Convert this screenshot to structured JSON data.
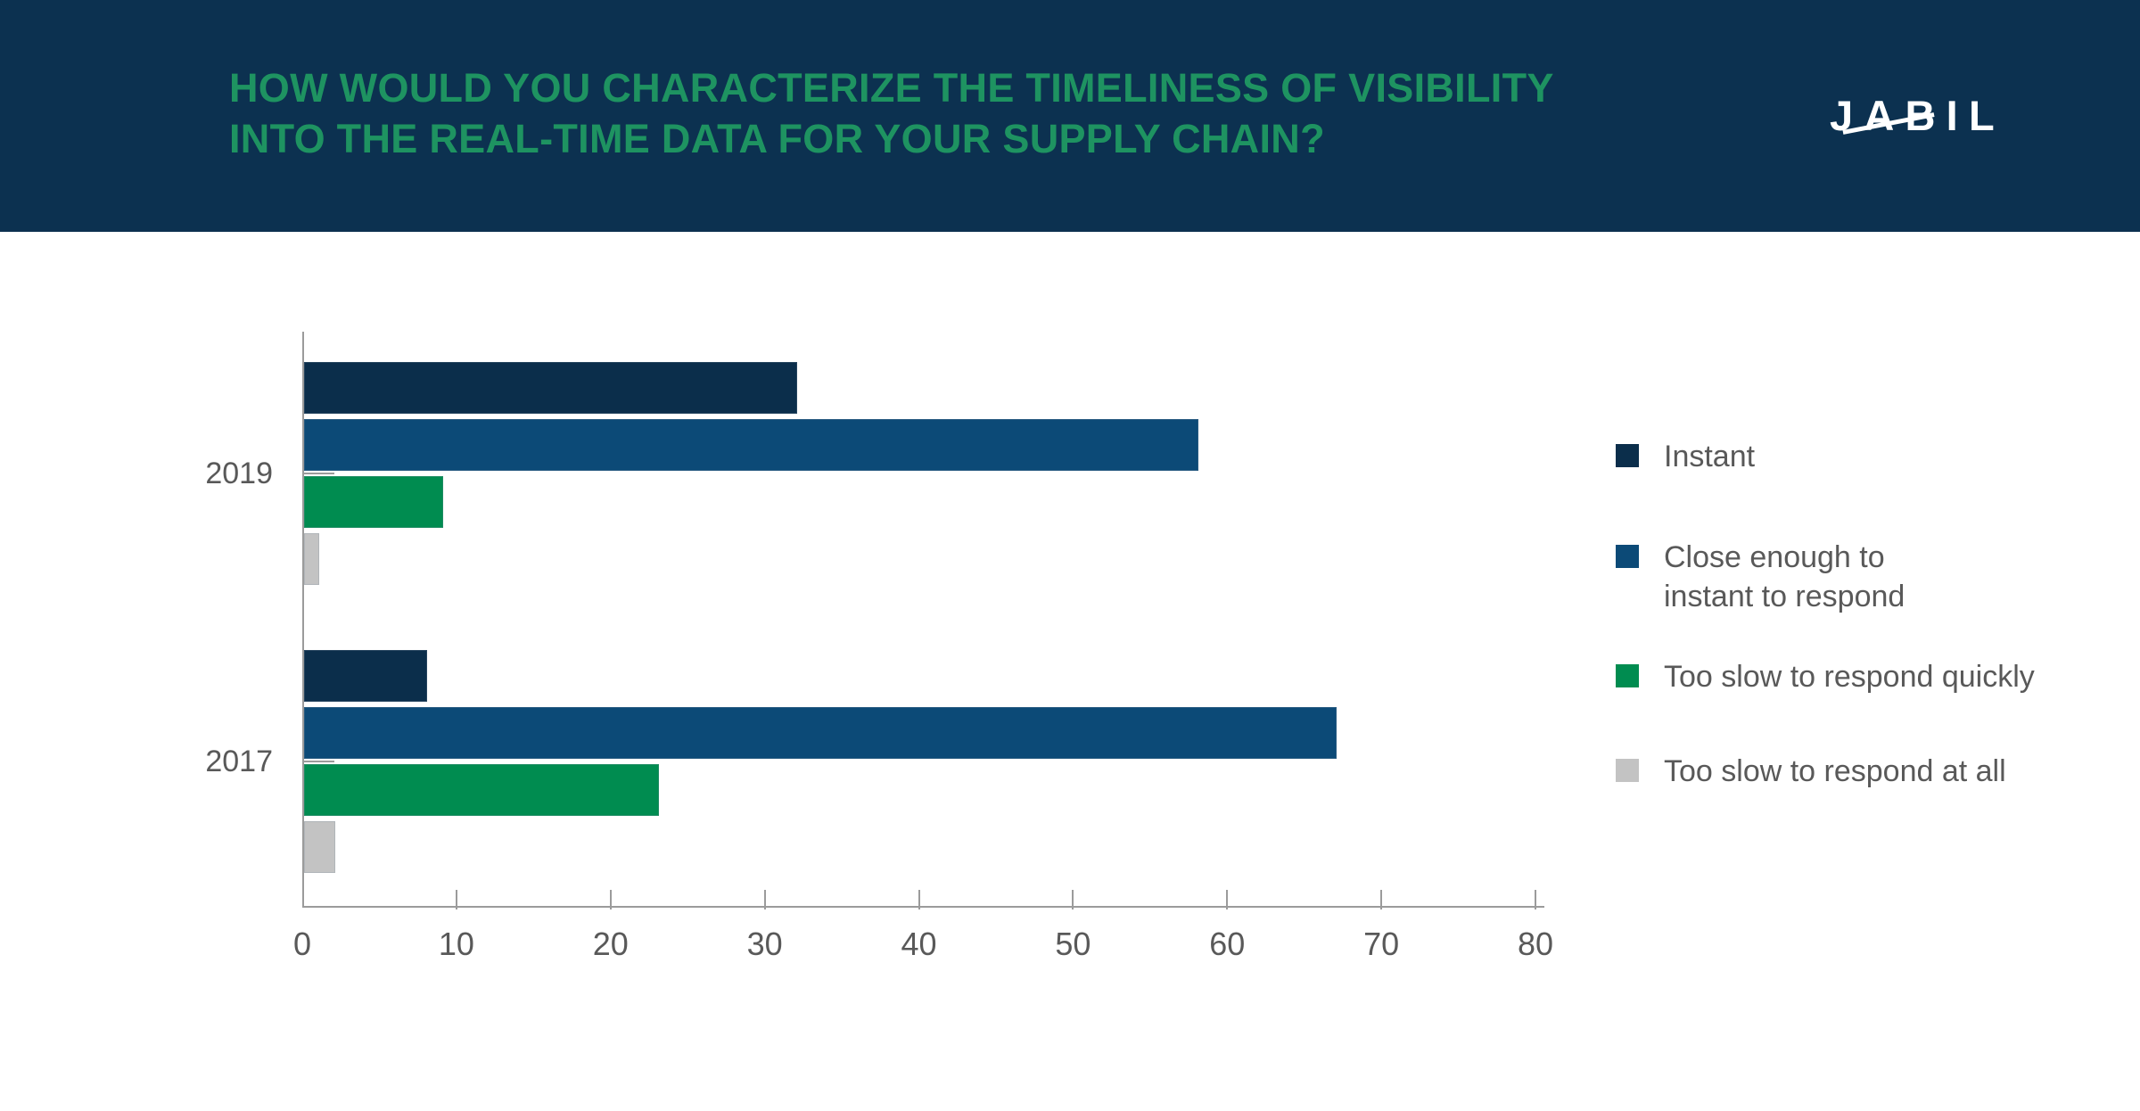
{
  "header": {
    "title_line1": "HOW WOULD YOU CHARACTERIZE THE TIMELINESS OF VISIBILITY",
    "title_line2": "INTO THE REAL-TIME DATA FOR YOUR SUPPLY CHAIN?",
    "title_color": "#1e9361",
    "background_color": "#0c3150",
    "logo_text": "JABIL",
    "logo_color": "#ffffff"
  },
  "chart_data": {
    "type": "bar",
    "orientation": "horizontal",
    "title": "How would you characterize the timeliness of visibility into the real-time data for your supply chain?",
    "categories": [
      "2019",
      "2017"
    ],
    "series": [
      {
        "name": "Instant",
        "color": "#0b2e4b",
        "values": [
          32,
          8
        ]
      },
      {
        "name": "Close enough to instant to respond",
        "color": "#0c4a77",
        "values": [
          58,
          67
        ]
      },
      {
        "name": "Too slow to respond quickly",
        "color": "#008c50",
        "values": [
          9,
          23
        ]
      },
      {
        "name": "Too slow to respond at all",
        "color": "#c3c3c3",
        "values": [
          1,
          2
        ]
      }
    ],
    "xlim": [
      0,
      80
    ],
    "x_ticks": [
      0,
      10,
      20,
      30,
      40,
      50,
      60,
      70,
      80
    ],
    "grid": false,
    "legend_position": "right",
    "axis_text_color": "#595959",
    "axis_line_color": "#9b9b9b"
  },
  "legend": {
    "items": [
      {
        "lines": [
          "Instant"
        ],
        "color": "#0b2e4b"
      },
      {
        "lines": [
          "Close enough to",
          "instant to respond"
        ],
        "color": "#0c4a77"
      },
      {
        "lines": [
          "Too slow to respond quickly"
        ],
        "color": "#008c50"
      },
      {
        "lines": [
          "Too slow to respond at all"
        ],
        "color": "#c3c3c3"
      }
    ]
  }
}
